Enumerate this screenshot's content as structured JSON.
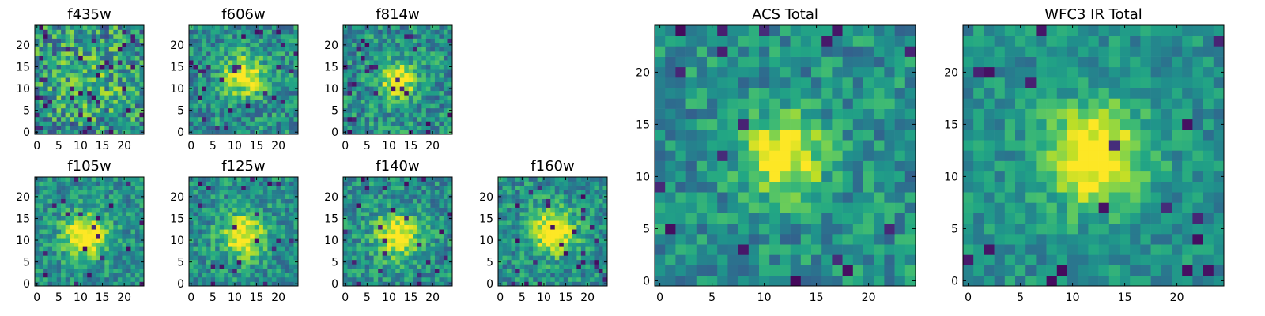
{
  "chart_data": [
    {
      "type": "heatmap",
      "title": "f435w",
      "x_ticks": [
        "0",
        "5",
        "10",
        "15",
        "20"
      ],
      "y_ticks": [
        "0",
        "5",
        "10",
        "15",
        "20"
      ],
      "n": 25,
      "peak": [
        13,
        13
      ],
      "sigma": 7,
      "amp": 0.12,
      "noise": 0.62,
      "seed": 11,
      "dark": 0.06
    },
    {
      "type": "heatmap",
      "title": "f606w",
      "x_ticks": [
        "0",
        "5",
        "10",
        "15",
        "20"
      ],
      "y_ticks": [
        "0",
        "5",
        "10",
        "15",
        "20"
      ],
      "n": 25,
      "peak": [
        12,
        13
      ],
      "sigma": 3.2,
      "amp": 0.55,
      "noise": 0.45,
      "seed": 23,
      "dark": 0.04
    },
    {
      "type": "heatmap",
      "title": "f814w",
      "x_ticks": [
        "0",
        "5",
        "10",
        "15",
        "20"
      ],
      "y_ticks": [
        "0",
        "5",
        "10",
        "15",
        "20"
      ],
      "n": 25,
      "peak": [
        12,
        12
      ],
      "sigma": 2.8,
      "amp": 0.55,
      "noise": 0.45,
      "seed": 37,
      "dark": 0.05
    },
    {
      "type": "heatmap",
      "title": "f105w",
      "x_ticks": [
        "0",
        "5",
        "10",
        "15",
        "20"
      ],
      "y_ticks": [
        "0",
        "5",
        "10",
        "15",
        "20"
      ],
      "n": 25,
      "peak": [
        11,
        11
      ],
      "sigma": 3.5,
      "amp": 0.6,
      "noise": 0.38,
      "seed": 41,
      "dark": 0.03
    },
    {
      "type": "heatmap",
      "title": "f125w",
      "x_ticks": [
        "0",
        "5",
        "10",
        "15",
        "20"
      ],
      "y_ticks": [
        "0",
        "5",
        "10",
        "15",
        "20"
      ],
      "n": 25,
      "peak": [
        12,
        11
      ],
      "sigma": 3.5,
      "amp": 0.55,
      "noise": 0.4,
      "seed": 53,
      "dark": 0.04
    },
    {
      "type": "heatmap",
      "title": "f140w",
      "x_ticks": [
        "0",
        "5",
        "10",
        "15",
        "20"
      ],
      "y_ticks": [
        "0",
        "5",
        "10",
        "15",
        "20"
      ],
      "n": 25,
      "peak": [
        12,
        11
      ],
      "sigma": 3.5,
      "amp": 0.55,
      "noise": 0.4,
      "seed": 67,
      "dark": 0.03
    },
    {
      "type": "heatmap",
      "title": "f160w",
      "x_ticks": [
        "0",
        "5",
        "10",
        "15",
        "20"
      ],
      "y_ticks": [
        "0",
        "5",
        "10",
        "15",
        "20"
      ],
      "n": 25,
      "peak": [
        12,
        12
      ],
      "sigma": 3.5,
      "amp": 0.6,
      "noise": 0.4,
      "seed": 79,
      "dark": 0.05
    },
    {
      "type": "heatmap",
      "title": "ACS Total",
      "x_ticks": [
        "0",
        "5",
        "10",
        "15",
        "20"
      ],
      "y_ticks": [
        "0",
        "5",
        "10",
        "15",
        "20"
      ],
      "n": 25,
      "peak": [
        12,
        12
      ],
      "sigma": 2.6,
      "amp": 0.6,
      "noise": 0.38,
      "seed": 97,
      "dark": 0.035
    },
    {
      "type": "heatmap",
      "title": "WFC3 IR Total",
      "x_ticks": [
        "0",
        "5",
        "10",
        "15",
        "20"
      ],
      "y_ticks": [
        "0",
        "5",
        "10",
        "15",
        "20"
      ],
      "n": 25,
      "peak": [
        12,
        12
      ],
      "sigma": 3.3,
      "amp": 0.65,
      "noise": 0.3,
      "seed": 113,
      "dark": 0.03
    }
  ]
}
